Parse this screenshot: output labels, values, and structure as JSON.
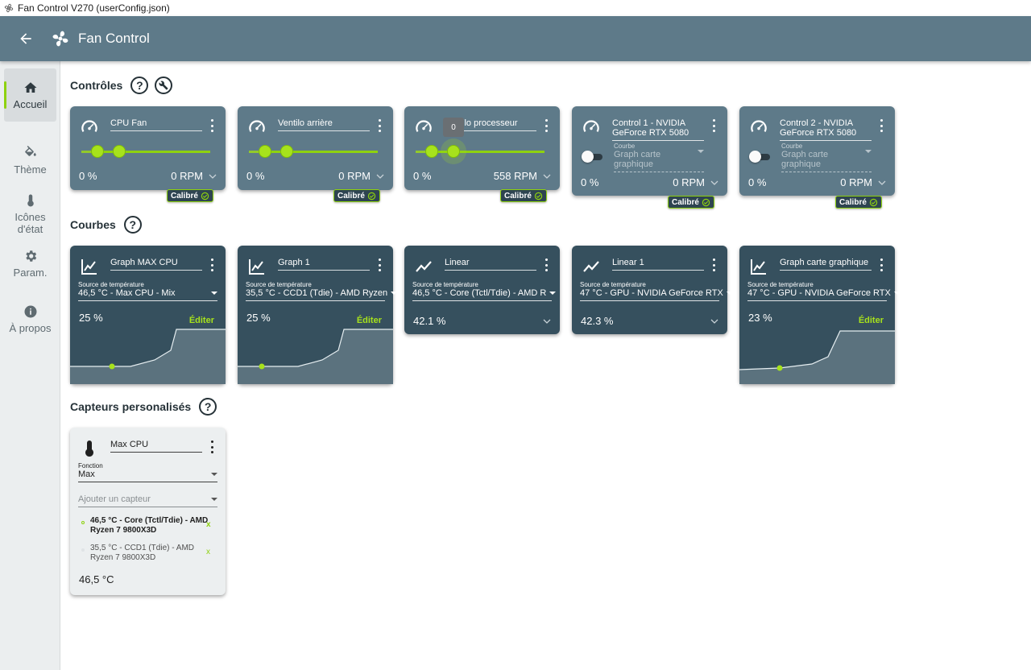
{
  "window": {
    "title": "Fan Control V270 (userConfig.json)"
  },
  "appbar": {
    "title": "Fan Control"
  },
  "sidebar": {
    "items": [
      {
        "label": "Accueil",
        "icon": "home-icon"
      },
      {
        "label": "Thème",
        "icon": "paint-bucket-icon"
      },
      {
        "label": "Icônes d'état",
        "icon": "thermometer-icon"
      },
      {
        "label": "Param.",
        "icon": "gear-icon"
      },
      {
        "label": "À propos",
        "icon": "info-icon"
      }
    ]
  },
  "sections": {
    "controls": "Contrôles",
    "curves": "Courbes",
    "sensors": "Capteurs personalisés"
  },
  "help_glyph": "?",
  "controls": [
    {
      "name": "CPU Fan",
      "percent": "0 %",
      "rpm": "0 RPM",
      "badge": "Calibré",
      "slider_fraction": 0.0
    },
    {
      "name": "Ventilo arrière",
      "percent": "0 %",
      "rpm": "0 RPM",
      "badge": "Calibré",
      "slider_fraction": 0.0
    },
    {
      "name": "Ventilo processeur",
      "percent": "0 %",
      "rpm": "558 RPM",
      "badge": "Calibré",
      "slider_fraction": 0.0,
      "tooltip": "0"
    },
    {
      "name": "Control 1 - NVIDIA GeForce RTX 5080",
      "percent": "0 %",
      "rpm": "0 RPM",
      "badge": "Calibré",
      "curve_label": "Courbe",
      "curve_value": "Graph carte graphique",
      "enabled": false
    },
    {
      "name": "Control 2 - NVIDIA GeForce RTX 5080",
      "percent": "0 %",
      "rpm": "0 RPM",
      "badge": "Calibré",
      "curve_label": "Courbe",
      "curve_value": "Graph carte graphique",
      "enabled": false
    }
  ],
  "curves": [
    {
      "name": "Graph MAX CPU",
      "source_label": "Source de température",
      "source": "46,5 °C - Max CPU - Mix",
      "value": "25 %",
      "edit": "Éditer",
      "icon": "graph-curve-icon"
    },
    {
      "name": "Graph 1",
      "source_label": "Source de température",
      "source": "35,5 °C - CCD1 (Tdie) - AMD Ryzen",
      "value": "25 %",
      "edit": "Éditer",
      "icon": "graph-curve-icon"
    },
    {
      "name": "Linear",
      "source_label": "Source de température",
      "source": "46,5 °C - Core (Tctl/Tdie) - AMD R",
      "value": "42.1 %",
      "icon": "linear-curve-icon"
    },
    {
      "name": "Linear 1",
      "source_label": "Source de température",
      "source": "47 °C - GPU - NVIDIA GeForce RTX",
      "value": "42.3 %",
      "icon": "linear-curve-icon"
    },
    {
      "name": "Graph carte graphique",
      "source_label": "Source de température",
      "source": "47 °C - GPU - NVIDIA GeForce RTX",
      "value": "23 %",
      "edit": "Éditer",
      "icon": "graph-curve-icon"
    }
  ],
  "sensor": {
    "name": "Max CPU",
    "function_label": "Fonction",
    "function_value": "Max",
    "add_placeholder": "Ajouter un capteur",
    "items": [
      {
        "text": "46,5 °C - Core (Tctl/Tdie) - AMD Ryzen 7 9800X3D",
        "active": true,
        "remove": "x"
      },
      {
        "text": "35,5 °C - CCD1 (Tdie) - AMD Ryzen 7 9800X3D",
        "active": false,
        "remove": "x"
      }
    ],
    "value": "46,5 °C"
  },
  "colors": {
    "appbar": "#5e7a89",
    "control_card": "#5e7a89",
    "curve_card": "#36505e",
    "accent": "#8ed20f",
    "sidebar": "#ebeeef"
  }
}
